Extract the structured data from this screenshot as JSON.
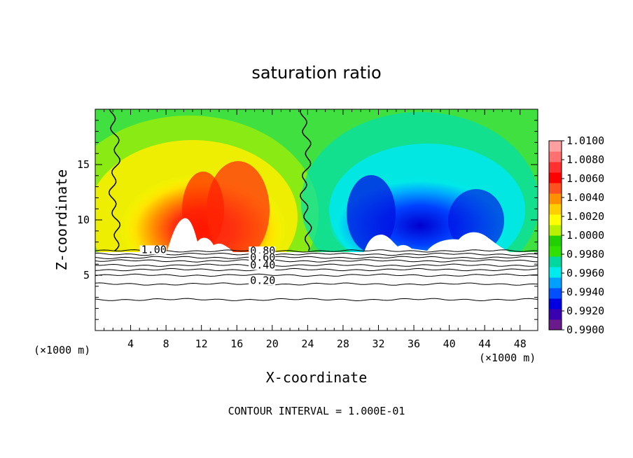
{
  "chart_data": {
    "type": "heatmap",
    "title": "saturation ratio",
    "xlabel": "X-coordinate",
    "ylabel": "Z-coordinate",
    "x_unit_left": "(×1000 m)",
    "x_unit_right": "(×1000 m)",
    "footer": "CONTOUR INTERVAL = 1.000E-01",
    "xlim": [
      0,
      50
    ],
    "ylim": [
      0,
      20
    ],
    "x_ticks": [
      4,
      8,
      12,
      16,
      20,
      24,
      28,
      32,
      36,
      40,
      44,
      48
    ],
    "y_ticks": [
      5,
      10,
      15
    ],
    "colorbar": {
      "min": 0.99,
      "max": 1.01,
      "labels": [
        "1.0100",
        "1.0080",
        "1.0060",
        "1.0040",
        "1.0020",
        "1.0000",
        "0.9980",
        "0.9960",
        "0.9940",
        "0.9920",
        "0.9900"
      ],
      "colors": [
        "#6a1a8a",
        "#3a00b0",
        "#0000e0",
        "#0050ff",
        "#00a0ff",
        "#00ecec",
        "#00d8a0",
        "#30e000",
        "#20d000",
        "#b8f000",
        "#ffff00",
        "#ffd000",
        "#ff9000",
        "#ff5020",
        "#ff0000",
        "#ff3030",
        "#ff7070",
        "#ffa0a0"
      ]
    },
    "contour_labels": [
      {
        "text": "1.00",
        "x": 5.2,
        "y": 7.0
      },
      {
        "text": "0.80",
        "x": 17.5,
        "y": 6.9
      },
      {
        "text": "0.60",
        "x": 17.5,
        "y": 6.3
      },
      {
        "text": "0.40",
        "x": 17.5,
        "y": 5.6
      },
      {
        "text": "0.20",
        "x": 17.5,
        "y": 4.2
      }
    ],
    "contour_levels_z": [
      7.2,
      6.9,
      6.6,
      6.3,
      5.9,
      5.5,
      5.0,
      4.2,
      2.8
    ],
    "vertical_contours_x": [
      2.2,
      23.8
    ]
  }
}
